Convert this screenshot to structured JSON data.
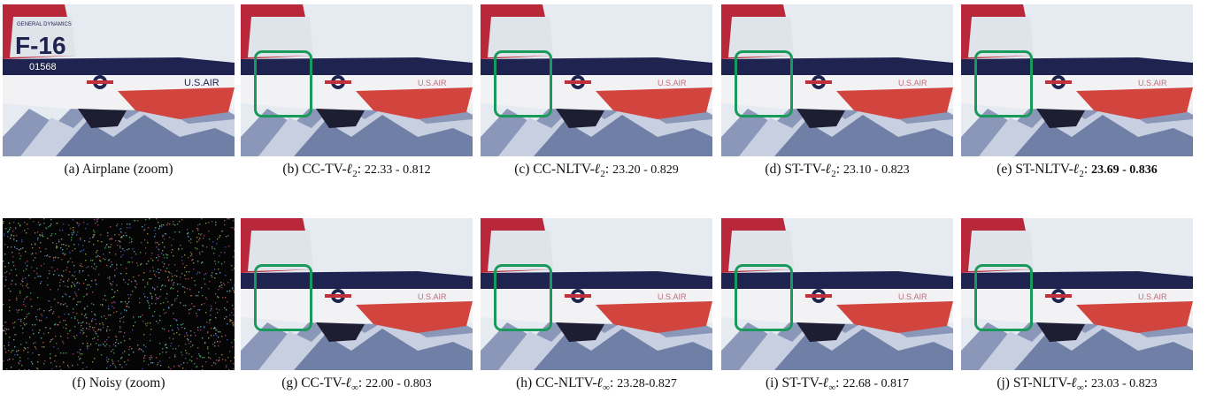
{
  "figure": {
    "panels": [
      {
        "tag": "(a)",
        "method": "Airplane (zoom)",
        "norm": "",
        "score": "",
        "kind": "original"
      },
      {
        "tag": "(b)",
        "method": "CC-TV-",
        "norm": "2",
        "score": "22.33 - 0.812",
        "kind": "restored"
      },
      {
        "tag": "(c)",
        "method": "CC-NLTV-",
        "norm": "2",
        "score": "23.20 - 0.829",
        "kind": "restored"
      },
      {
        "tag": "(d)",
        "method": "ST-TV-",
        "norm": "2",
        "score": "23.10 - 0.823",
        "kind": "restored"
      },
      {
        "tag": "(e)",
        "method": "ST-NLTV-",
        "norm": "2",
        "score": "23.69 - 0.836",
        "kind": "restored",
        "bold": true
      },
      {
        "tag": "(f)",
        "method": "Noisy (zoom)",
        "norm": "",
        "score": "",
        "kind": "noisy"
      },
      {
        "tag": "(g)",
        "method": "CC-TV-",
        "norm": "∞",
        "score": "22.00 - 0.803",
        "kind": "restored"
      },
      {
        "tag": "(h)",
        "method": "CC-NLTV-",
        "norm": "∞",
        "score": "23.28-0.827",
        "kind": "restored"
      },
      {
        "tag": "(i)",
        "method": "ST-TV-",
        "norm": "∞",
        "score": "22.68 - 0.817",
        "kind": "restored"
      },
      {
        "tag": "(j)",
        "method": "ST-NLTV-",
        "norm": "∞",
        "score": "23.03 - 0.823",
        "kind": "restored"
      }
    ],
    "image_text": {
      "tail": "F-16",
      "serial": "01568",
      "usair": "U.S.AIR",
      "brand": "GENERAL DYNAMICS"
    },
    "colors": {
      "roi": "#1a9a5a",
      "tail_red": "#b8283a",
      "navy": "#1e2350",
      "sky": "#e6ebf2"
    }
  }
}
